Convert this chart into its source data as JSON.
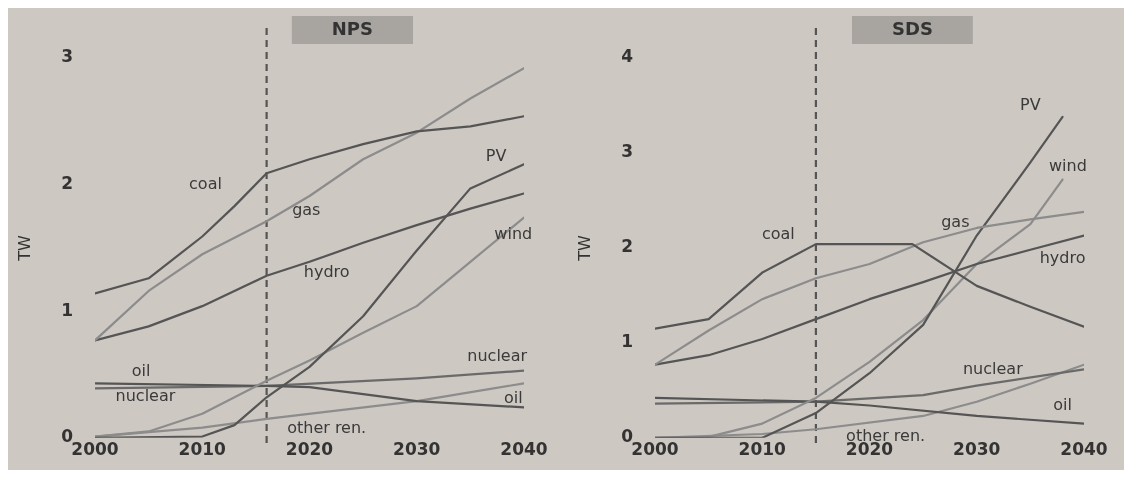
{
  "chart_data": [
    {
      "type": "line",
      "title": "NPS",
      "ylabel": "TW",
      "xlim": [
        2000,
        2040
      ],
      "xticks": [
        2000,
        2010,
        2020,
        2030,
        2040
      ],
      "ylim": [
        0,
        3
      ],
      "yticks": [
        0,
        1,
        2,
        3
      ],
      "grid": false,
      "legend": false,
      "marker": "none",
      "ref_lines": [
        {
          "axis": "x",
          "value": 2016,
          "color": "#555555",
          "line_style": "dashed"
        }
      ],
      "series": [
        {
          "name": "coal",
          "color": "#555555",
          "x": [
            2000,
            2005,
            2010,
            2013,
            2016,
            2020,
            2025,
            2030,
            2035,
            2040
          ],
          "values": [
            1.14,
            1.26,
            1.59,
            1.83,
            2.09,
            2.2,
            2.32,
            2.42,
            2.46,
            2.54
          ]
        },
        {
          "name": "gas",
          "color": "#8c8c8c",
          "x": [
            2000,
            2005,
            2010,
            2016,
            2020,
            2025,
            2030,
            2035,
            2040
          ],
          "values": [
            0.77,
            1.16,
            1.45,
            1.71,
            1.91,
            2.2,
            2.41,
            2.68,
            2.92
          ]
        },
        {
          "name": "hydro",
          "color": "#555555",
          "x": [
            2000,
            2005,
            2010,
            2016,
            2020,
            2025,
            2030,
            2035,
            2040
          ],
          "values": [
            0.77,
            0.88,
            1.04,
            1.28,
            1.39,
            1.54,
            1.68,
            1.81,
            1.93
          ]
        },
        {
          "name": "PV",
          "color": "#555555",
          "x": [
            2000,
            2010,
            2013,
            2016,
            2020,
            2025,
            2030,
            2035,
            2040
          ],
          "values": [
            0,
            0.01,
            0.1,
            0.32,
            0.56,
            0.96,
            1.48,
            1.97,
            2.16
          ]
        },
        {
          "name": "wind",
          "color": "#8c8c8c",
          "x": [
            2000,
            2005,
            2010,
            2016,
            2020,
            2025,
            2030,
            2035,
            2040
          ],
          "values": [
            0.01,
            0.05,
            0.19,
            0.45,
            0.61,
            0.83,
            1.04,
            1.39,
            1.74
          ]
        },
        {
          "name": "oil",
          "color": "#555555",
          "x": [
            2000,
            2016,
            2020,
            2030,
            2040
          ],
          "values": [
            0.43,
            0.41,
            0.4,
            0.29,
            0.24
          ]
        },
        {
          "name": "nuclear",
          "color": "#6a6a6a",
          "x": [
            2000,
            2016,
            2030,
            2040
          ],
          "values": [
            0.39,
            0.41,
            0.47,
            0.53
          ]
        },
        {
          "name": "other ren.",
          "color": "#8c8c8c",
          "x": [
            2000,
            2010,
            2016,
            2030,
            2040
          ],
          "values": [
            0.01,
            0.08,
            0.15,
            0.29,
            0.43
          ]
        }
      ]
    },
    {
      "type": "line",
      "title": "SDS",
      "ylabel": "TW",
      "xlim": [
        2000,
        2040
      ],
      "xticks": [
        2000,
        2010,
        2020,
        2030,
        2040
      ],
      "ylim": [
        0,
        4
      ],
      "yticks": [
        0,
        1,
        2,
        3,
        4
      ],
      "grid": false,
      "legend": false,
      "marker": "none",
      "ref_lines": [
        {
          "axis": "x",
          "value": 2015,
          "color": "#555555",
          "line_style": "dashed"
        }
      ],
      "series": [
        {
          "name": "coal",
          "color": "#555555",
          "x": [
            2000,
            2005,
            2010,
            2015,
            2020,
            2024,
            2030,
            2035,
            2040
          ],
          "values": [
            1.15,
            1.25,
            1.74,
            2.04,
            2.04,
            2.04,
            1.6,
            1.38,
            1.17
          ]
        },
        {
          "name": "gas",
          "color": "#8c8c8c",
          "x": [
            2000,
            2005,
            2010,
            2015,
            2020,
            2025,
            2030,
            2035,
            2040
          ],
          "values": [
            0.77,
            1.13,
            1.46,
            1.68,
            1.83,
            2.06,
            2.21,
            2.3,
            2.38
          ]
        },
        {
          "name": "hydro",
          "color": "#555555",
          "x": [
            2000,
            2005,
            2010,
            2015,
            2020,
            2025,
            2030,
            2035,
            2040
          ],
          "values": [
            0.77,
            0.87,
            1.04,
            1.25,
            1.46,
            1.64,
            1.83,
            1.98,
            2.13
          ]
        },
        {
          "name": "PV",
          "color": "#555555",
          "x": [
            2000,
            2010,
            2015,
            2020,
            2025,
            2030,
            2035,
            2038
          ],
          "values": [
            0,
            0,
            0.26,
            0.68,
            1.19,
            2.13,
            2.9,
            3.38
          ]
        },
        {
          "name": "wind",
          "color": "#8c8c8c",
          "x": [
            2000,
            2005,
            2010,
            2015,
            2020,
            2025,
            2030,
            2035,
            2038
          ],
          "values": [
            0,
            0.01,
            0.15,
            0.42,
            0.8,
            1.24,
            1.83,
            2.25,
            2.72
          ]
        },
        {
          "name": "oil",
          "color": "#555555",
          "x": [
            2000,
            2015,
            2020,
            2030,
            2040
          ],
          "values": [
            0.42,
            0.38,
            0.34,
            0.23,
            0.15
          ]
        },
        {
          "name": "nuclear",
          "color": "#6a6a6a",
          "x": [
            2000,
            2015,
            2025,
            2030,
            2040
          ],
          "values": [
            0.36,
            0.38,
            0.45,
            0.55,
            0.72
          ]
        },
        {
          "name": "other ren.",
          "color": "#8c8c8c",
          "x": [
            2000,
            2010,
            2015,
            2025,
            2030,
            2035,
            2040
          ],
          "values": [
            0,
            0.04,
            0.09,
            0.23,
            0.38,
            0.57,
            0.77
          ]
        }
      ]
    }
  ]
}
